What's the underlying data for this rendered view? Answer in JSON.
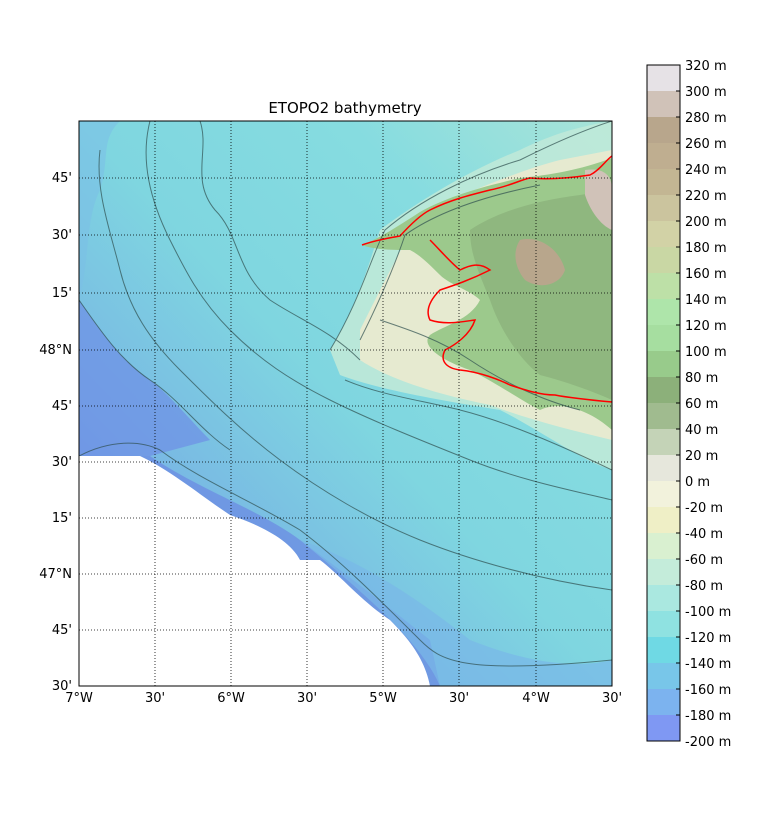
{
  "title": "ETOPO2 bathymetry",
  "map": {
    "lon_range": [
      -7.0,
      -3.5
    ],
    "lat_range": [
      46.5,
      48.0
    ],
    "lon_ticks": [
      "7°W",
      "30'",
      "6°W",
      "30'",
      "5°W",
      "30'",
      "4°W",
      "30'"
    ],
    "lat_ticks": [
      "30'",
      "45'",
      "47°N",
      "15'",
      "30'",
      "45'",
      "48°N",
      "15'",
      "30'",
      "45'"
    ],
    "gridlines": "dotted",
    "coastline_color": "#ff0000",
    "no_data_region": "south-west (white)"
  },
  "colorbar": {
    "labels": [
      "320 m",
      "300 m",
      "280 m",
      "260 m",
      "240 m",
      "220 m",
      "200 m",
      "180 m",
      "160 m",
      "140 m",
      "120 m",
      "100 m",
      "80 m",
      "60 m",
      "40 m",
      "20 m",
      "0 m",
      "-20 m",
      "-40 m",
      "-60 m",
      "-80 m",
      "-100 m",
      "-120 m",
      "-140 m",
      "-160 m",
      "-180 m",
      "-200 m"
    ],
    "colors": [
      "#e6e2e6",
      "#d0c2b8",
      "#b8a68c",
      "#bfae90",
      "#c3b693",
      "#cbc49e",
      "#d2d2a6",
      "#c9d7a4",
      "#bde0a7",
      "#aee5aa",
      "#a6dea0",
      "#98cb8b",
      "#8cb07a",
      "#a0bb8f",
      "#c4d3b7",
      "#e6e7dc",
      "#f2f2dc",
      "#efefc6",
      "#d9f0d0",
      "#c4ecda",
      "#aae8e0",
      "#8fe2e1",
      "#6fd9e4",
      "#78c6e9",
      "#7cb3ef",
      "#7f98f3"
    ]
  }
}
